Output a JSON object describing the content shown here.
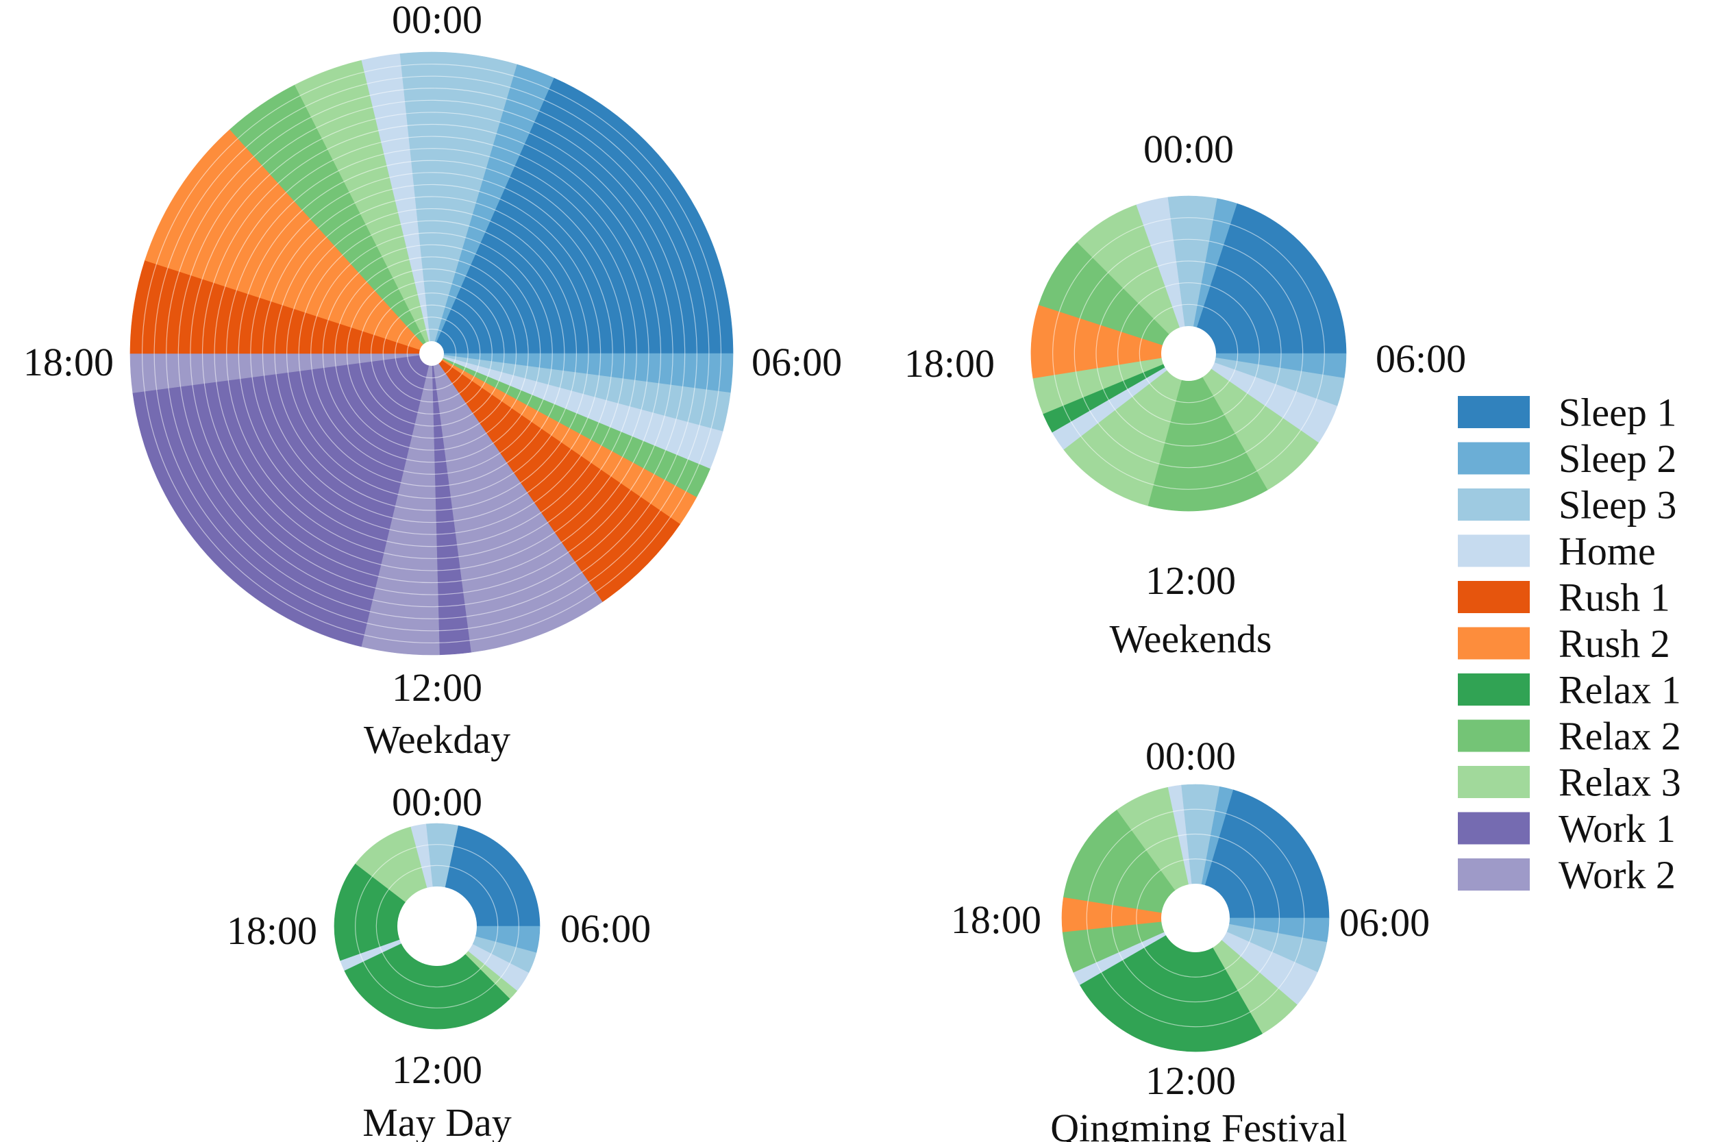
{
  "figure": {
    "legend_title": "",
    "legend": [
      {
        "name": "Sleep 1",
        "color": "#3182bd"
      },
      {
        "name": "Sleep 2",
        "color": "#6baed6"
      },
      {
        "name": "Sleep 3",
        "color": "#9ecae1"
      },
      {
        "name": "Home",
        "color": "#c6dbef"
      },
      {
        "name": "Rush 1",
        "color": "#e6550d"
      },
      {
        "name": "Rush 2",
        "color": "#fd8d3c"
      },
      {
        "name": "Relax 1",
        "color": "#31a354"
      },
      {
        "name": "Relax 2",
        "color": "#74c476"
      },
      {
        "name": "Relax 3",
        "color": "#a1d99b"
      },
      {
        "name": "Work 1",
        "color": "#756bb1"
      },
      {
        "name": "Work 2",
        "color": "#9e9ac8"
      }
    ]
  },
  "chart_data": [
    {
      "type": "radial-timeline",
      "title": "Weekday",
      "time_labels": {
        "top": "00:00",
        "right": "06:00",
        "bottom": "12:00",
        "left": "18:00"
      },
      "rings": 24,
      "ring_value_range": [
        0,
        24
      ],
      "sectors": [
        {
          "state": "Home",
          "start_hour": 23.1,
          "end_hour": 23.6,
          "ring_from": 0,
          "ring_to": 24
        },
        {
          "state": "Sleep 3",
          "start_hour": 23.6,
          "end_hour": 24.0,
          "ring_from": 0,
          "ring_to": 24
        },
        {
          "state": "Sleep 3",
          "start_hour": 0.0,
          "end_hour": 1.1,
          "ring_from": 0,
          "ring_to": 24
        },
        {
          "state": "Sleep 2",
          "start_hour": 1.1,
          "end_hour": 1.6,
          "ring_from": 0,
          "ring_to": 24
        },
        {
          "state": "Sleep 1",
          "start_hour": 1.6,
          "end_hour": 6.0,
          "ring_from": 0,
          "ring_to": 24
        },
        {
          "state": "Sleep 2",
          "start_hour": 6.0,
          "end_hour": 6.5,
          "ring_from": 0,
          "ring_to": 24
        },
        {
          "state": "Sleep 3",
          "start_hour": 6.5,
          "end_hour": 7.0,
          "ring_from": 0,
          "ring_to": 24
        },
        {
          "state": "Home",
          "start_hour": 7.0,
          "end_hour": 7.5,
          "ring_from": 0,
          "ring_to": 24
        },
        {
          "state": "Relax 2",
          "start_hour": 7.5,
          "end_hour": 7.9,
          "ring_from": 0,
          "ring_to": 24
        },
        {
          "state": "Rush 2",
          "start_hour": 7.9,
          "end_hour": 8.3,
          "ring_from": 0,
          "ring_to": 24
        },
        {
          "state": "Rush 1",
          "start_hour": 8.3,
          "end_hour": 9.7,
          "ring_from": 0,
          "ring_to": 24
        },
        {
          "state": "Work 2",
          "start_hour": 9.7,
          "end_hour": 11.5,
          "ring_from": 0,
          "ring_to": 24
        },
        {
          "state": "Work 1",
          "start_hour": 11.5,
          "end_hour": 11.9,
          "ring_from": 0,
          "ring_to": 24
        },
        {
          "state": "Work 2",
          "start_hour": 11.9,
          "end_hour": 12.9,
          "ring_from": 0,
          "ring_to": 24
        },
        {
          "state": "Work 1",
          "start_hour": 12.9,
          "end_hour": 17.5,
          "ring_from": 0,
          "ring_to": 24
        },
        {
          "state": "Work 2",
          "start_hour": 17.5,
          "end_hour": 18.0,
          "ring_from": 0,
          "ring_to": 24
        },
        {
          "state": "Rush 1",
          "start_hour": 18.0,
          "end_hour": 19.2,
          "ring_from": 0,
          "ring_to": 24
        },
        {
          "state": "Rush 2",
          "start_hour": 19.2,
          "end_hour": 21.2,
          "ring_from": 0,
          "ring_to": 24
        },
        {
          "state": "Relax 2",
          "start_hour": 21.2,
          "end_hour": 22.2,
          "ring_from": 0,
          "ring_to": 24
        },
        {
          "state": "Relax 3",
          "start_hour": 22.2,
          "end_hour": 23.1,
          "ring_from": 0,
          "ring_to": 24
        }
      ]
    },
    {
      "type": "radial-timeline",
      "title": "Weekends",
      "time_labels": {
        "top": "00:00",
        "right": "06:00",
        "bottom": "12:00",
        "left": "18:00"
      },
      "rings": 6,
      "ring_value_range": [
        0,
        6
      ],
      "sectors": [
        {
          "state": "Home",
          "start_hour": 22.7,
          "end_hour": 23.5,
          "ring_from": 0,
          "ring_to": 6
        },
        {
          "state": "Sleep 3",
          "start_hour": 23.5,
          "end_hour": 24.0,
          "ring_from": 0,
          "ring_to": 6
        },
        {
          "state": "Sleep 3",
          "start_hour": 0.0,
          "end_hour": 0.7,
          "ring_from": 0,
          "ring_to": 6
        },
        {
          "state": "Sleep 2",
          "start_hour": 0.7,
          "end_hour": 1.2,
          "ring_from": 0,
          "ring_to": 6
        },
        {
          "state": "Sleep 1",
          "start_hour": 1.2,
          "end_hour": 6.0,
          "ring_from": 0,
          "ring_to": 6
        },
        {
          "state": "Sleep 2",
          "start_hour": 6.0,
          "end_hour": 6.6,
          "ring_from": 0,
          "ring_to": 6
        },
        {
          "state": "Sleep 3",
          "start_hour": 6.6,
          "end_hour": 7.3,
          "ring_from": 0,
          "ring_to": 6
        },
        {
          "state": "Home",
          "start_hour": 7.3,
          "end_hour": 8.3,
          "ring_from": 0,
          "ring_to": 6
        },
        {
          "state": "Relax 3",
          "start_hour": 8.3,
          "end_hour": 10.0,
          "ring_from": 0,
          "ring_to": 6
        },
        {
          "state": "Relax 2",
          "start_hour": 10.0,
          "end_hour": 13.0,
          "ring_from": 0,
          "ring_to": 6
        },
        {
          "state": "Relax 3",
          "start_hour": 13.0,
          "end_hour": 15.5,
          "ring_from": 0,
          "ring_to": 6
        },
        {
          "state": "Home",
          "start_hour": 15.5,
          "end_hour": 16.0,
          "ring_from": 0,
          "ring_to": 6
        },
        {
          "state": "Relax 1",
          "start_hour": 16.0,
          "end_hour": 16.5,
          "ring_from": 0,
          "ring_to": 6
        },
        {
          "state": "Relax 3",
          "start_hour": 16.5,
          "end_hour": 17.4,
          "ring_from": 0,
          "ring_to": 6
        },
        {
          "state": "Rush 2",
          "start_hour": 17.4,
          "end_hour": 19.2,
          "ring_from": 0,
          "ring_to": 6
        },
        {
          "state": "Relax 2",
          "start_hour": 19.2,
          "end_hour": 21.0,
          "ring_from": 0,
          "ring_to": 6
        },
        {
          "state": "Relax 3",
          "start_hour": 21.0,
          "end_hour": 22.7,
          "ring_from": 0,
          "ring_to": 6
        }
      ]
    },
    {
      "type": "radial-timeline",
      "title": "May Day",
      "time_labels": {
        "top": "00:00",
        "right": "06:00",
        "bottom": "12:00",
        "left": "18:00"
      },
      "rings": 3,
      "ring_value_range": [
        0,
        3
      ],
      "sectors": [
        {
          "state": "Home",
          "start_hour": 23.0,
          "end_hour": 23.6,
          "ring_from": 0,
          "ring_to": 3
        },
        {
          "state": "Sleep 3",
          "start_hour": 23.6,
          "end_hour": 24.0,
          "ring_from": 0,
          "ring_to": 3
        },
        {
          "state": "Sleep 3",
          "start_hour": 0.0,
          "end_hour": 0.8,
          "ring_from": 0,
          "ring_to": 3
        },
        {
          "state": "Sleep 1",
          "start_hour": 0.8,
          "end_hour": 6.0,
          "ring_from": 0,
          "ring_to": 3
        },
        {
          "state": "Sleep 2",
          "start_hour": 6.0,
          "end_hour": 7.0,
          "ring_from": 0,
          "ring_to": 3
        },
        {
          "state": "Sleep 3",
          "start_hour": 7.0,
          "end_hour": 7.8,
          "ring_from": 0,
          "ring_to": 3
        },
        {
          "state": "Home",
          "start_hour": 7.8,
          "end_hour": 8.6,
          "ring_from": 0,
          "ring_to": 3
        },
        {
          "state": "Relax 3",
          "start_hour": 8.6,
          "end_hour": 9.0,
          "ring_from": 0,
          "ring_to": 3
        },
        {
          "state": "Relax 1",
          "start_hour": 9.0,
          "end_hour": 16.3,
          "ring_from": 0,
          "ring_to": 3
        },
        {
          "state": "Home",
          "start_hour": 16.3,
          "end_hour": 16.7,
          "ring_from": 0,
          "ring_to": 3
        },
        {
          "state": "Relax 1",
          "start_hour": 16.7,
          "end_hour": 20.5,
          "ring_from": 0,
          "ring_to": 3
        },
        {
          "state": "Relax 3",
          "start_hour": 20.5,
          "end_hour": 23.0,
          "ring_from": 0,
          "ring_to": 3
        }
      ]
    },
    {
      "type": "radial-timeline",
      "title": "Qingming Festival",
      "time_labels": {
        "top": "00:00",
        "right": "06:00",
        "bottom": "12:00",
        "left": "18:00"
      },
      "rings": 4,
      "ring_value_range": [
        0,
        4
      ],
      "sectors": [
        {
          "state": "Home",
          "start_hour": 23.2,
          "end_hour": 23.6,
          "ring_from": 0,
          "ring_to": 4
        },
        {
          "state": "Sleep 3",
          "start_hour": 23.6,
          "end_hour": 24.0,
          "ring_from": 0,
          "ring_to": 4
        },
        {
          "state": "Sleep 3",
          "start_hour": 0.0,
          "end_hour": 0.7,
          "ring_from": 0,
          "ring_to": 4
        },
        {
          "state": "Sleep 2",
          "start_hour": 0.7,
          "end_hour": 1.1,
          "ring_from": 0,
          "ring_to": 4
        },
        {
          "state": "Sleep 1",
          "start_hour": 1.1,
          "end_hour": 6.0,
          "ring_from": 0,
          "ring_to": 4
        },
        {
          "state": "Sleep 2",
          "start_hour": 6.0,
          "end_hour": 6.7,
          "ring_from": 0,
          "ring_to": 4
        },
        {
          "state": "Sleep 3",
          "start_hour": 6.7,
          "end_hour": 7.6,
          "ring_from": 0,
          "ring_to": 4
        },
        {
          "state": "Home",
          "start_hour": 7.6,
          "end_hour": 8.7,
          "ring_from": 0,
          "ring_to": 4
        },
        {
          "state": "Relax 3",
          "start_hour": 8.7,
          "end_hour": 10.0,
          "ring_from": 0,
          "ring_to": 4
        },
        {
          "state": "Relax 1",
          "start_hour": 10.0,
          "end_hour": 16.0,
          "ring_from": 0,
          "ring_to": 4
        },
        {
          "state": "Home",
          "start_hour": 16.0,
          "end_hour": 16.4,
          "ring_from": 0,
          "ring_to": 4
        },
        {
          "state": "Relax 2",
          "start_hour": 16.4,
          "end_hour": 17.6,
          "ring_from": 0,
          "ring_to": 4
        },
        {
          "state": "Rush 2",
          "start_hour": 17.6,
          "end_hour": 18.6,
          "ring_from": 0,
          "ring_to": 4
        },
        {
          "state": "Relax 2",
          "start_hour": 18.6,
          "end_hour": 21.6,
          "ring_from": 0,
          "ring_to": 4
        },
        {
          "state": "Relax 3",
          "start_hour": 21.6,
          "end_hour": 23.2,
          "ring_from": 0,
          "ring_to": 4
        }
      ]
    }
  ]
}
